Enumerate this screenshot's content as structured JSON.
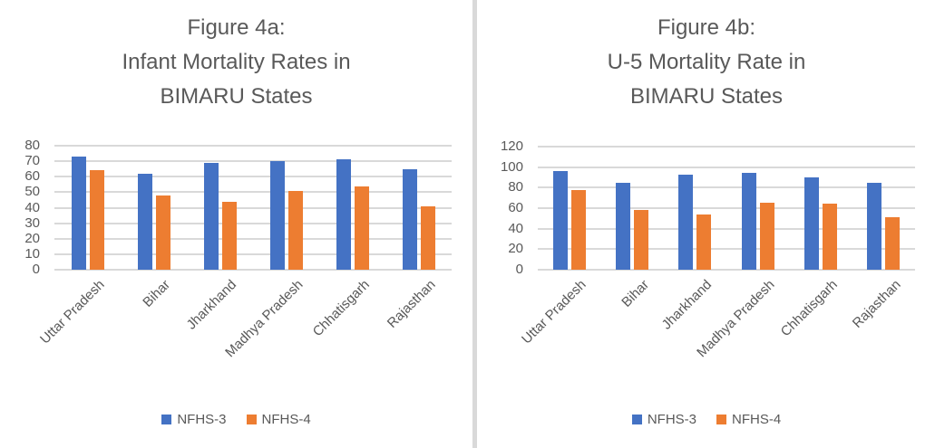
{
  "colors": {
    "series_nfhs3": "#4472C4",
    "series_nfhs4": "#ED7D31",
    "gridline": "#D9D9D9",
    "text": "#595959",
    "divider": "#D9D9D9"
  },
  "chart_data": [
    {
      "type": "bar",
      "title": "Figure 4a: Infant Mortality Rates in BIMARU States",
      "title_lines": [
        "Figure 4a:",
        "Infant Mortality Rates in",
        "BIMARU States"
      ],
      "categories": [
        "Uttar Pradesh",
        "Bihar",
        "Jharkhand",
        "Madhya Pradesh",
        "Chhatisgarh",
        "Rajasthan"
      ],
      "series": [
        {
          "name": "NFHS-3",
          "color": "#4472C4",
          "values": [
            73,
            62,
            69,
            70,
            71,
            65
          ]
        },
        {
          "name": "NFHS-4",
          "color": "#ED7D31",
          "values": [
            64,
            48,
            44,
            51,
            54,
            41
          ]
        }
      ],
      "xlabel": "",
      "ylabel": "",
      "ylim": [
        0,
        80
      ],
      "y_ticks": [
        0,
        10,
        20,
        30,
        40,
        50,
        60,
        70,
        80
      ],
      "grid": true,
      "legend_position": "bottom",
      "legend": [
        "NFHS-3",
        "NFHS-4"
      ]
    },
    {
      "type": "bar",
      "title": "Figure 4b: U-5 Mortality Rate in BIMARU States",
      "title_lines": [
        "Figure 4b:",
        "U-5 Mortality Rate in",
        "BIMARU States"
      ],
      "categories": [
        "Uttar Pradesh",
        "Bihar",
        "Jharkhand",
        "Madhya Pradesh",
        "Chhatisgarh",
        "Rajasthan"
      ],
      "series": [
        {
          "name": "NFHS-3",
          "color": "#4472C4",
          "values": [
            96,
            85,
            93,
            94,
            90,
            85
          ]
        },
        {
          "name": "NFHS-4",
          "color": "#ED7D31",
          "values": [
            78,
            58,
            54,
            65,
            64,
            51
          ]
        }
      ],
      "xlabel": "",
      "ylabel": "",
      "ylim": [
        0,
        120
      ],
      "y_ticks": [
        0,
        20,
        40,
        60,
        80,
        100,
        120
      ],
      "grid": true,
      "legend_position": "bottom",
      "legend": [
        "NFHS-3",
        "NFHS-4"
      ]
    }
  ]
}
